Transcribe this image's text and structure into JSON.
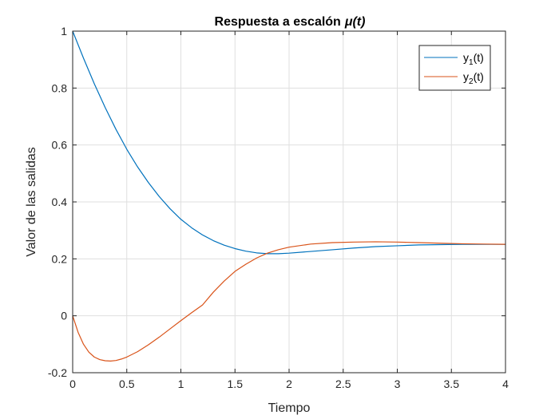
{
  "chart_data": {
    "type": "line",
    "title": "Respuesta a escalón",
    "title_symbol": "μ(t)",
    "xlabel": "Tiempo",
    "ylabel": "Valor de las salidas",
    "xlim": [
      0,
      4
    ],
    "ylim": [
      -0.2,
      1
    ],
    "xticks": [
      "0",
      "0.5",
      "1",
      "1.5",
      "2",
      "2.5",
      "3",
      "3.5",
      "4"
    ],
    "yticks": [
      "-0.2",
      "0",
      "0.2",
      "0.4",
      "0.6",
      "0.8",
      "1"
    ],
    "grid": true,
    "legend_position": "top-right",
    "series": [
      {
        "name": "y1(t)",
        "label_base": "y",
        "label_sub": "1",
        "label_tail": "(t)",
        "color": "#0072BD",
        "x": [
          0,
          0.1,
          0.2,
          0.3,
          0.4,
          0.5,
          0.6,
          0.7,
          0.8,
          0.9,
          1.0,
          1.1,
          1.2,
          1.3,
          1.4,
          1.5,
          1.6,
          1.7,
          1.8,
          1.9,
          2.0,
          2.2,
          2.4,
          2.6,
          2.8,
          3.0,
          3.2,
          3.4,
          3.6,
          3.8,
          4.0
        ],
        "y": [
          1.0,
          0.905,
          0.815,
          0.732,
          0.655,
          0.585,
          0.523,
          0.468,
          0.419,
          0.376,
          0.339,
          0.309,
          0.284,
          0.264,
          0.248,
          0.236,
          0.227,
          0.221,
          0.218,
          0.218,
          0.22,
          0.226,
          0.232,
          0.238,
          0.243,
          0.246,
          0.249,
          0.25,
          0.251,
          0.251,
          0.251
        ]
      },
      {
        "name": "y2(t)",
        "label_base": "y",
        "label_sub": "2",
        "label_tail": "(t)",
        "color": "#D95319",
        "x": [
          0,
          0.05,
          0.1,
          0.15,
          0.2,
          0.25,
          0.3,
          0.35,
          0.4,
          0.45,
          0.5,
          0.6,
          0.7,
          0.8,
          0.9,
          1.0,
          1.1,
          1.2,
          1.3,
          1.4,
          1.5,
          1.6,
          1.7,
          1.8,
          1.9,
          2.0,
          2.2,
          2.4,
          2.6,
          2.8,
          3.0,
          3.2,
          3.4,
          3.6,
          3.8,
          4.0
        ],
        "y": [
          0,
          -0.058,
          -0.1,
          -0.128,
          -0.145,
          -0.154,
          -0.158,
          -0.159,
          -0.157,
          -0.152,
          -0.145,
          -0.126,
          -0.102,
          -0.075,
          -0.046,
          -0.017,
          0.011,
          0.038,
          0.083,
          0.122,
          0.156,
          0.181,
          0.203,
          0.22,
          0.232,
          0.241,
          0.252,
          0.257,
          0.259,
          0.26,
          0.259,
          0.257,
          0.255,
          0.253,
          0.252,
          0.251
        ]
      }
    ]
  }
}
